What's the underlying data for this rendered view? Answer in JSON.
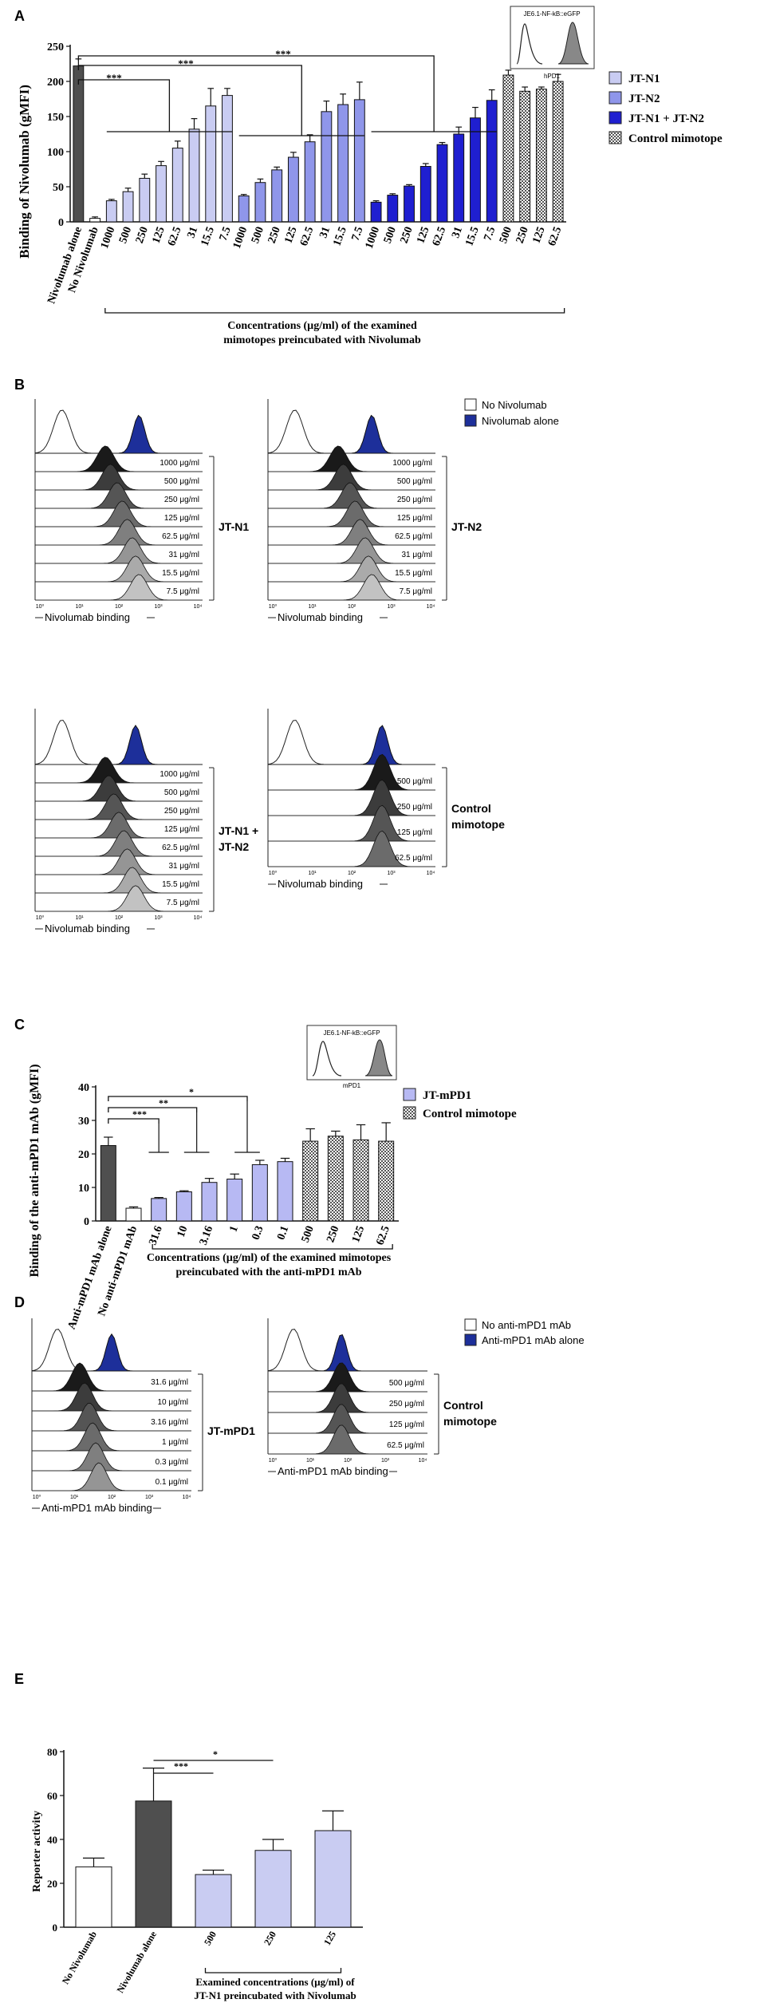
{
  "colors": {
    "jtn1": "#c9ccf2",
    "jtn2": "#8f96ea",
    "jtn12": "#1f1fd0",
    "dark": "#4f4f4f",
    "histo_blue": "#1d2f9a",
    "jtmpd1": "#b7b9f3"
  },
  "panels": {
    "a_letter": "A",
    "b_letter": "B",
    "c_letter": "C",
    "d_letter": "D",
    "e_letter": "E"
  },
  "chart_data": [
    {
      "id": "A",
      "type": "bar",
      "ylabel": "Binding of Nivolumab (gMFI)",
      "ylim": [
        0,
        250
      ],
      "yticks": [
        0,
        50,
        100,
        150,
        200,
        250
      ],
      "xlabel_lines": [
        "Concentrations (µg/ml) of the examined",
        "mimotopes preincubated with Nivolumab"
      ],
      "significance": [
        "***",
        "***",
        "***"
      ],
      "legend": [
        "JT-N1",
        "JT-N2",
        "JT-N1 + JT-N2",
        "Control mimotope"
      ],
      "inset": {
        "title": "JE6.1-NF-kB::eGFP",
        "xlabel": "hPD1"
      },
      "bars": [
        {
          "label": "Nivolumab alone",
          "value": 222,
          "err": 10,
          "group": "dark"
        },
        {
          "label": "No Nivolumab",
          "value": 5,
          "err": 2,
          "group": "none"
        },
        {
          "label": "1000",
          "value": 30,
          "err": 2,
          "group": "jtn1"
        },
        {
          "label": "500",
          "value": 43,
          "err": 5,
          "group": "jtn1"
        },
        {
          "label": "250",
          "value": 62,
          "err": 6,
          "group": "jtn1"
        },
        {
          "label": "125",
          "value": 80,
          "err": 6,
          "group": "jtn1"
        },
        {
          "label": "62.5",
          "value": 105,
          "err": 10,
          "group": "jtn1"
        },
        {
          "label": "31",
          "value": 132,
          "err": 15,
          "group": "jtn1"
        },
        {
          "label": "15.5",
          "value": 165,
          "err": 25,
          "group": "jtn1"
        },
        {
          "label": "7.5",
          "value": 180,
          "err": 10,
          "group": "jtn1"
        },
        {
          "label": "1000",
          "value": 37,
          "err": 2,
          "group": "jtn2"
        },
        {
          "label": "500",
          "value": 56,
          "err": 5,
          "group": "jtn2"
        },
        {
          "label": "250",
          "value": 74,
          "err": 4,
          "group": "jtn2"
        },
        {
          "label": "125",
          "value": 92,
          "err": 7,
          "group": "jtn2"
        },
        {
          "label": "62.5",
          "value": 114,
          "err": 10,
          "group": "jtn2"
        },
        {
          "label": "31",
          "value": 157,
          "err": 15,
          "group": "jtn2"
        },
        {
          "label": "15.5",
          "value": 167,
          "err": 15,
          "group": "jtn2"
        },
        {
          "label": "7.5",
          "value": 174,
          "err": 25,
          "group": "jtn2"
        },
        {
          "label": "1000",
          "value": 28,
          "err": 2,
          "group": "jtn12"
        },
        {
          "label": "500",
          "value": 38,
          "err": 2,
          "group": "jtn12"
        },
        {
          "label": "250",
          "value": 51,
          "err": 2,
          "group": "jtn12"
        },
        {
          "label": "125",
          "value": 79,
          "err": 4,
          "group": "jtn12"
        },
        {
          "label": "62.5",
          "value": 110,
          "err": 3,
          "group": "jtn12"
        },
        {
          "label": "31",
          "value": 125,
          "err": 10,
          "group": "jtn12"
        },
        {
          "label": "15.5",
          "value": 148,
          "err": 15,
          "group": "jtn12"
        },
        {
          "label": "7.5",
          "value": 173,
          "err": 15,
          "group": "jtn12"
        },
        {
          "label": "500",
          "value": 209,
          "err": 7,
          "group": "ctrl"
        },
        {
          "label": "250",
          "value": 186,
          "err": 6,
          "group": "ctrl"
        },
        {
          "label": "125",
          "value": 189,
          "err": 3,
          "group": "ctrl"
        },
        {
          "label": "62.5",
          "value": 200,
          "err": 10,
          "group": "ctrl"
        }
      ]
    },
    {
      "id": "C",
      "type": "bar",
      "ylabel": "Binding of the anti-mPD1 mAb (gMFI)",
      "ylim": [
        0,
        40
      ],
      "yticks": [
        0,
        10,
        20,
        30,
        40
      ],
      "xlabel_lines": [
        "Concentrations (µg/ml) of the examined mimotopes",
        "preincubated with the anti-mPD1 mAb"
      ],
      "significance": [
        "***",
        "**",
        "*"
      ],
      "legend": [
        "JT-mPD1",
        "Control mimotope"
      ],
      "inset": {
        "title": "JE6.1-NF-kB::eGFP",
        "xlabel": "mPD1"
      },
      "bars": [
        {
          "label": "Anti-mPD1 mAb alone",
          "value": 22.5,
          "err": 2.5,
          "group": "dark"
        },
        {
          "label": "No anti-mPD1 mAb",
          "value": 3.8,
          "err": 0.4,
          "group": "none"
        },
        {
          "label": "31.6",
          "value": 6.7,
          "err": 0.3,
          "group": "jtm"
        },
        {
          "label": "10",
          "value": 8.7,
          "err": 0.3,
          "group": "jtm"
        },
        {
          "label": "3.16",
          "value": 11.5,
          "err": 1.2,
          "group": "jtm"
        },
        {
          "label": "1",
          "value": 12.5,
          "err": 1.5,
          "group": "jtm"
        },
        {
          "label": "0.3",
          "value": 16.8,
          "err": 1.3,
          "group": "jtm"
        },
        {
          "label": "0.1",
          "value": 17.7,
          "err": 1.0,
          "group": "jtm"
        },
        {
          "label": "500",
          "value": 23.8,
          "err": 3.7,
          "group": "ctrl"
        },
        {
          "label": "250",
          "value": 25.3,
          "err": 1.5,
          "group": "ctrl"
        },
        {
          "label": "125",
          "value": 24.2,
          "err": 4.5,
          "group": "ctrl"
        },
        {
          "label": "62.5",
          "value": 23.8,
          "err": 5.5,
          "group": "ctrl"
        }
      ]
    },
    {
      "id": "E",
      "type": "bar",
      "ylabel": "Reporter activity",
      "ylim": [
        0,
        80
      ],
      "yticks": [
        0,
        20,
        40,
        60,
        80
      ],
      "xlabel_lines": [
        "Examined concentrations (µg/ml) of",
        "JT-N1 preincubated with Nivolumab"
      ],
      "significance": [
        "***",
        "*"
      ],
      "bars": [
        {
          "label": "No Nivolumab",
          "value": 27.5,
          "err": 4,
          "group": "none"
        },
        {
          "label": "Nivolumab alone",
          "value": 57.5,
          "err": 15,
          "group": "dark"
        },
        {
          "label": "500",
          "value": 24,
          "err": 2,
          "group": "jtn1"
        },
        {
          "label": "250",
          "value": 35,
          "err": 5,
          "group": "jtn1"
        },
        {
          "label": "125",
          "value": 44,
          "err": 9,
          "group": "jtn1"
        }
      ]
    }
  ],
  "flow": {
    "B": {
      "legend": [
        "No Nivolumab",
        "Nivolumab alone"
      ],
      "xlabel": "Nivolumab binding",
      "ticks": [
        "10⁰",
        "10¹",
        "10²",
        "10³",
        "10⁴"
      ],
      "blocks": [
        {
          "name": "JT-N1",
          "peaks": [
            0.42,
            0.45,
            0.49,
            0.52,
            0.55,
            0.58,
            0.6,
            0.62
          ],
          "labels": [
            "1000 μg/ml",
            "500 μg/ml",
            "250 μg/ml",
            "125 μg/ml",
            "62.5 μg/ml",
            "31 μg/ml",
            "15.5 μg/ml",
            "7.5 μg/ml"
          ]
        },
        {
          "name": "JT-N2",
          "peaks": [
            0.42,
            0.45,
            0.49,
            0.52,
            0.55,
            0.58,
            0.6,
            0.62
          ],
          "labels": [
            "1000 μg/ml",
            "500 μg/ml",
            "250 μg/ml",
            "125 μg/ml",
            "62.5 μg/ml",
            "31 μg/ml",
            "15.5 μg/ml",
            "7.5 μg/ml"
          ]
        },
        {
          "name": "JT-N1 +",
          "name2": "JT-N2",
          "peaks": [
            0.42,
            0.44,
            0.47,
            0.5,
            0.53,
            0.55,
            0.58,
            0.6
          ],
          "labels": [
            "1000 μg/ml",
            "500 μg/ml",
            "250 μg/ml",
            "125 μg/ml",
            "62.5 μg/ml",
            "31 μg/ml",
            "15.5 μg/ml",
            "7.5 μg/ml"
          ]
        },
        {
          "name": "Control",
          "name2": "mimotope",
          "peaks": [
            0.68,
            0.68,
            0.68,
            0.68
          ],
          "labels": [
            "500 μg/ml",
            "250 μg/ml",
            "125 μg/ml",
            "62.5 μg/ml"
          ]
        }
      ]
    },
    "D": {
      "legend": [
        "No anti-mPD1 mAb",
        "Anti-mPD1 mAb alone"
      ],
      "xlabel": "Anti-mPD1 mAb binding",
      "ticks": [
        "10⁰",
        "10¹",
        "10²",
        "10³",
        "10⁴"
      ],
      "blocks": [
        {
          "name": "JT-mPD1",
          "peaks": [
            0.3,
            0.33,
            0.36,
            0.38,
            0.4,
            0.42
          ],
          "labels": [
            "31.6 μg/ml",
            "10 μg/ml",
            "3.16 μg/ml",
            "1 μg/ml",
            "0.3 μg/ml",
            "0.1 μg/ml"
          ]
        },
        {
          "name": "Control",
          "name2": "mimotope",
          "peaks": [
            0.46,
            0.46,
            0.46,
            0.46
          ],
          "labels": [
            "500 μg/ml",
            "250 μg/ml",
            "125 μg/ml",
            "62.5 μg/ml"
          ]
        }
      ]
    }
  }
}
